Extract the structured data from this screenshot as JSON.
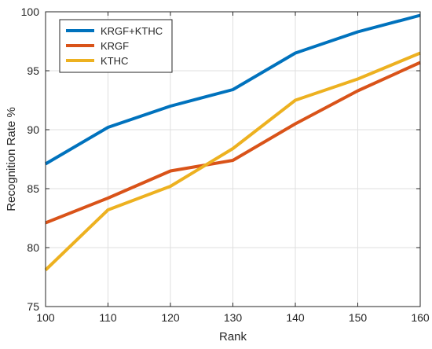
{
  "chart_data": {
    "type": "line",
    "title": "",
    "xlabel": "Rank",
    "ylabel": "Recognition Rate %",
    "x": [
      100,
      110,
      120,
      130,
      140,
      150,
      160
    ],
    "xlim": [
      100,
      160
    ],
    "ylim": [
      75,
      100
    ],
    "xticks": [
      "100",
      "110",
      "120",
      "130",
      "140",
      "150",
      "160"
    ],
    "yticks": [
      "75",
      "80",
      "85",
      "90",
      "95",
      "100"
    ],
    "grid": true,
    "legend_position": "top-left",
    "series": [
      {
        "name": "KRGF+KTHC",
        "color": "#0072BD",
        "values": [
          87.1,
          90.2,
          92.0,
          93.4,
          96.5,
          98.3,
          99.7
        ]
      },
      {
        "name": "KRGF",
        "color": "#D95319",
        "values": [
          82.1,
          84.2,
          86.5,
          87.4,
          90.5,
          93.3,
          95.7
        ]
      },
      {
        "name": "KTHC",
        "color": "#EDB120",
        "values": [
          78.1,
          83.2,
          85.2,
          88.4,
          92.5,
          94.3,
          96.5
        ]
      }
    ]
  }
}
